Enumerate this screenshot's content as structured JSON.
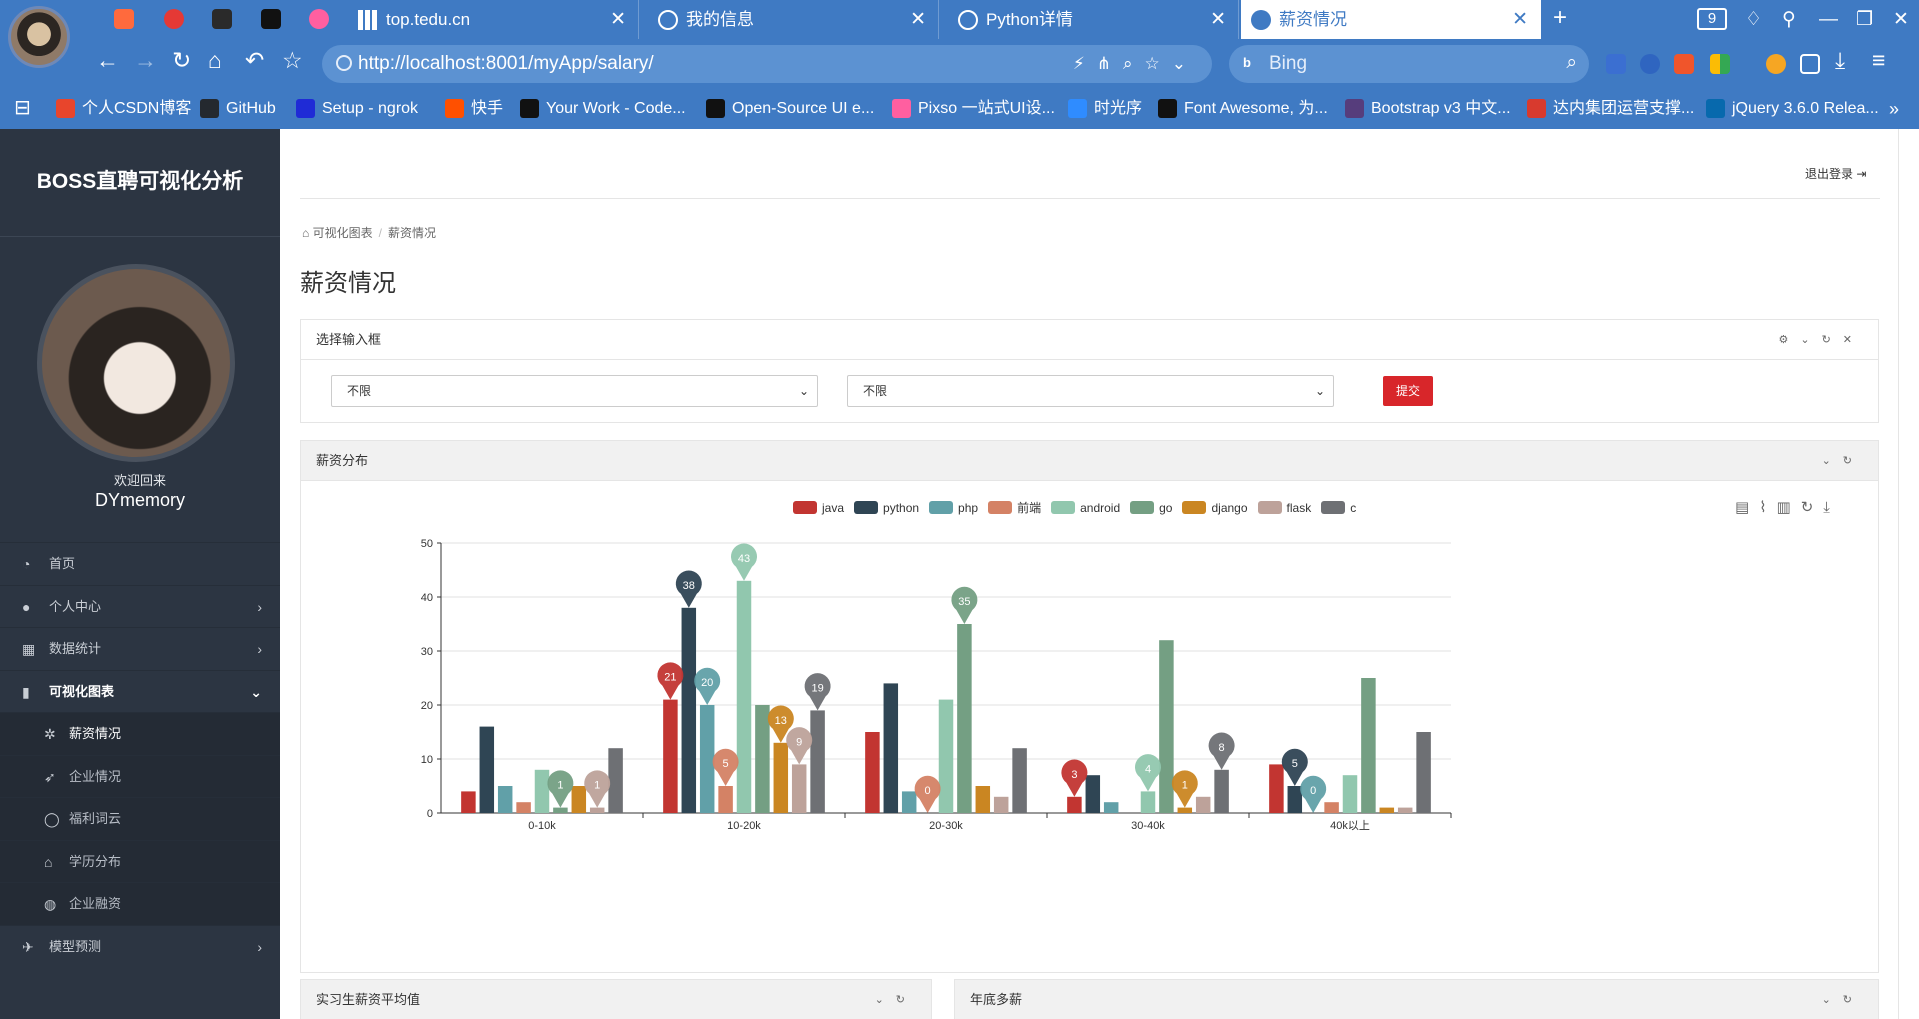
{
  "browser": {
    "tabs": [
      {
        "title": "top.tedu.cn"
      },
      {
        "title": "我的信息"
      },
      {
        "title": "Python详情"
      },
      {
        "title": "薪资情况"
      }
    ],
    "tab_count": "9",
    "url": "http://localhost:8001/myApp/salary/",
    "search_placeholder": "Bing",
    "bookmarks": [
      {
        "label": "个人CSDN博客",
        "color": "#e8452c"
      },
      {
        "label": "GitHub",
        "color": "#24292f"
      },
      {
        "label": "Setup - ngrok",
        "color": "#1f2bd6"
      },
      {
        "label": "快手",
        "color": "#ff5000"
      },
      {
        "label": "Your Work - Code...",
        "color": "#111111"
      },
      {
        "label": "Open-Source UI e...",
        "color": "#111111"
      },
      {
        "label": "Pixso 一站式UI设...",
        "color": "#ff5fa0"
      },
      {
        "label": "时光序",
        "color": "#2f8cff"
      },
      {
        "label": "Font Awesome, 为...",
        "color": "#111111"
      },
      {
        "label": "Bootstrap v3 中文...",
        "color": "#563d7c"
      },
      {
        "label": "达内集团运营支撑...",
        "color": "#d83a2e"
      },
      {
        "label": "jQuery 3.6.0 Relea...",
        "color": "#0769ad"
      }
    ]
  },
  "sidebar": {
    "brand": "BOSS直聘可视化分析",
    "welcome": "欢迎回来",
    "username": "DYmemory",
    "menu": [
      {
        "label": "首页",
        "icon": "dashboard-icon"
      },
      {
        "label": "个人中心",
        "icon": "user-icon"
      },
      {
        "label": "数据统计",
        "icon": "grid-icon"
      },
      {
        "label": "可视化图表",
        "icon": "bar-chart-icon"
      },
      {
        "label": "薪资情况",
        "icon": "gear-icon"
      },
      {
        "label": "企业情况",
        "icon": "rocket-icon"
      },
      {
        "label": "福利词云",
        "icon": "bulb-icon"
      },
      {
        "label": "学历分布",
        "icon": "graduation-cap-icon"
      },
      {
        "label": "企业融资",
        "icon": "globe-icon"
      },
      {
        "label": "模型预测",
        "icon": "plane-icon"
      }
    ]
  },
  "main": {
    "logout": "退出登录",
    "breadcrumb": [
      "可视化图表",
      "薪资情况"
    ],
    "title": "薪资情况",
    "filter_panel": {
      "title": "选择输入框",
      "select1": "不限",
      "select2": "不限",
      "submit": "提交"
    },
    "salary_panel": {
      "title": "薪资分布"
    },
    "intern_panel": {
      "title": "实习生薪资平均值"
    },
    "bonus_panel": {
      "title": "年底多薪"
    }
  },
  "chart_data": {
    "type": "bar",
    "categories": [
      "0-10k",
      "10-20k",
      "20-30k",
      "30-40k",
      "40k以上"
    ],
    "ylim": [
      0,
      50
    ],
    "yticks": [
      0,
      10,
      20,
      30,
      40,
      50
    ],
    "grid": true,
    "legend_position": "top-center",
    "series": [
      {
        "name": "java",
        "color": "#c23531",
        "values": [
          4,
          21,
          15,
          3,
          9
        ],
        "max_label_index": 1,
        "min_label_index": 3
      },
      {
        "name": "python",
        "color": "#2f4554",
        "values": [
          16,
          38,
          24,
          7,
          5
        ],
        "max_label_index": 1,
        "min_label_index": 4
      },
      {
        "name": "php",
        "color": "#61a0a8",
        "values": [
          5,
          20,
          4,
          2,
          0
        ],
        "max_label_index": 1,
        "min_label_index": 4
      },
      {
        "name": "前端",
        "color": "#d48265",
        "values": [
          2,
          5,
          0,
          0,
          2
        ],
        "max_label_index": 1,
        "min_label_index": 2
      },
      {
        "name": "android",
        "color": "#91c7ae",
        "values": [
          8,
          43,
          21,
          4,
          7
        ],
        "max_label_index": 1,
        "min_label_index": 3
      },
      {
        "name": "go",
        "color": "#749f83",
        "values": [
          1,
          20,
          35,
          32,
          25
        ],
        "max_label_index": 2,
        "min_label_index": 0
      },
      {
        "name": "django",
        "color": "#ca8622",
        "values": [
          5,
          13,
          5,
          1,
          1
        ],
        "max_label_index": 1,
        "min_label_index": 3
      },
      {
        "name": "flask",
        "color": "#bda29a",
        "values": [
          1,
          9,
          3,
          3,
          1
        ],
        "max_label_index": 1,
        "min_label_index": 0
      },
      {
        "name": "c",
        "color": "#6e7074",
        "values": [
          12,
          19,
          12,
          8,
          15
        ],
        "max_label_index": 1,
        "min_label_index": 3
      }
    ]
  }
}
